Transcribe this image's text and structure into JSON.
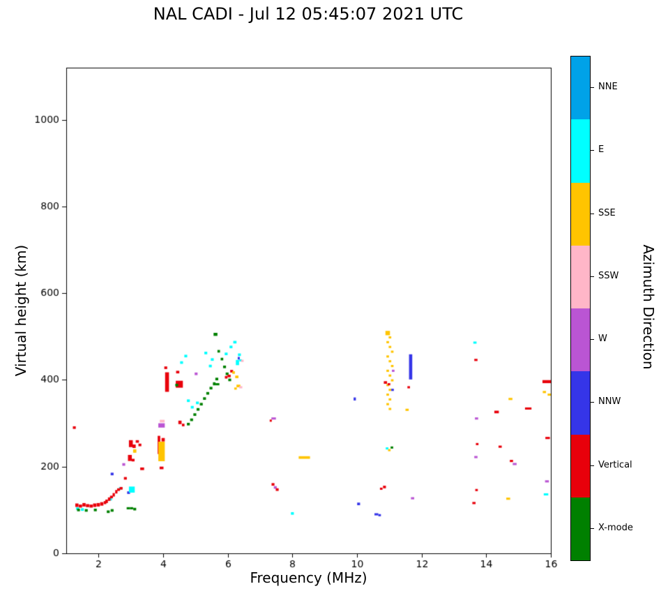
{
  "chart_data": {
    "type": "scatter",
    "title": "NAL CADI - Jul 12 05:45:07 2021 UTC",
    "xlabel": "Frequency (MHz)",
    "ylabel": "Virtual height (km)",
    "xlim": [
      1,
      16
    ],
    "ylim": [
      0,
      1120
    ],
    "xticks": [
      2,
      4,
      6,
      8,
      10,
      12,
      14,
      16
    ],
    "yticks": [
      0,
      200,
      400,
      600,
      800,
      1000
    ],
    "grid": false,
    "marker": "horizontal-dash",
    "colorbar": {
      "label": "Azimuth Direction",
      "position": "right",
      "categories": [
        {
          "label": "NNE",
          "color": "#00A2E8"
        },
        {
          "label": "E",
          "color": "#00FFFF"
        },
        {
          "label": "SSE",
          "color": "#FFC400"
        },
        {
          "label": "SSW",
          "color": "#FFB6C8"
        },
        {
          "label": "W",
          "color": "#BA55D3"
        },
        {
          "label": "NNW",
          "color": "#3535E8"
        },
        {
          "label": "Vertical",
          "color": "#E8000B"
        },
        {
          "label": "X-mode",
          "color": "#008000"
        }
      ]
    },
    "points_format": "[freq_MHz, virtual_height_km, category_index, width_MHz_optional, height_km_optional]",
    "points": [
      [
        1.25,
        290,
        6
      ],
      [
        1.33,
        111,
        6,
        0.1,
        8
      ],
      [
        1.44,
        109,
        6,
        0.1,
        7
      ],
      [
        1.55,
        112,
        6,
        0.1,
        8
      ],
      [
        1.66,
        110,
        6,
        0.1,
        7
      ],
      [
        1.77,
        109,
        6,
        0.1,
        7
      ],
      [
        1.88,
        111,
        6,
        0.1,
        8
      ],
      [
        1.99,
        112,
        6,
        0.1,
        8
      ],
      [
        2.1,
        114,
        6,
        0.1,
        8
      ],
      [
        2.2,
        117,
        6,
        0.08,
        7
      ],
      [
        1.35,
        103,
        1
      ],
      [
        1.5,
        101,
        1
      ],
      [
        2.37,
        125,
        1
      ],
      [
        2.68,
        150,
        1
      ],
      [
        1.38,
        100,
        7
      ],
      [
        1.62,
        99,
        7
      ],
      [
        1.9,
        100,
        7
      ],
      [
        2.3,
        96,
        7
      ],
      [
        2.42,
        99,
        7
      ],
      [
        2.25,
        120,
        6,
        0.08,
        8
      ],
      [
        2.33,
        125,
        6,
        0.08,
        8
      ],
      [
        2.4,
        130,
        6
      ],
      [
        2.47,
        135,
        6,
        0.07,
        8
      ],
      [
        2.55,
        142,
        6,
        0.07,
        8
      ],
      [
        2.62,
        147,
        6
      ],
      [
        2.7,
        150,
        6
      ],
      [
        2.83,
        173,
        6
      ],
      [
        2.42,
        183,
        5
      ],
      [
        2.93,
        140,
        5
      ],
      [
        2.92,
        104,
        7,
        0.1,
        5
      ],
      [
        3.02,
        104,
        7,
        0.1,
        5
      ],
      [
        3.12,
        102,
        7
      ],
      [
        3.03,
        147,
        1,
        0.18,
        14
      ],
      [
        2.78,
        205,
        4
      ],
      [
        2.97,
        220,
        6,
        0.12,
        14
      ],
      [
        3.07,
        215,
        6
      ],
      [
        3.0,
        253,
        6,
        0.12,
        16
      ],
      [
        3.1,
        247,
        6,
        0.1,
        8
      ],
      [
        3.12,
        236,
        2,
        0.1,
        8
      ],
      [
        3.2,
        258,
        6,
        0.1,
        6
      ],
      [
        3.28,
        250,
        6
      ],
      [
        3.35,
        195,
        6,
        0.12,
        6
      ],
      [
        3.87,
        250,
        6,
        0.08,
        42
      ],
      [
        3.95,
        235,
        2,
        0.2,
        45
      ],
      [
        3.95,
        197,
        6,
        0.12,
        6
      ],
      [
        4.0,
        262,
        6,
        0.1,
        8
      ],
      [
        3.95,
        295,
        4,
        0.2,
        10
      ],
      [
        3.97,
        305,
        3,
        0.15,
        6
      ],
      [
        4.12,
        395,
        6,
        0.12,
        45
      ],
      [
        4.08,
        428,
        6
      ],
      [
        4.45,
        418,
        6,
        0.1,
        6
      ],
      [
        4.5,
        390,
        6,
        0.22,
        16
      ],
      [
        4.52,
        302,
        6,
        0.1,
        8
      ],
      [
        4.62,
        296,
        6,
        0.08,
        6
      ],
      [
        4.42,
        388,
        7
      ],
      [
        4.78,
        298,
        7
      ],
      [
        4.88,
        308,
        7
      ],
      [
        4.98,
        320,
        7
      ],
      [
        5.08,
        332,
        7
      ],
      [
        5.18,
        344,
        7
      ],
      [
        5.28,
        357,
        7
      ],
      [
        5.38,
        369,
        7
      ],
      [
        5.48,
        381,
        7
      ],
      [
        5.58,
        391,
        7,
        0.08,
        7
      ],
      [
        5.66,
        402,
        7
      ],
      [
        5.62,
        505,
        7,
        0.12,
        7
      ],
      [
        5.72,
        466,
        7,
        0.08,
        6
      ],
      [
        5.82,
        448,
        7,
        0.08,
        6
      ],
      [
        5.9,
        430,
        7
      ],
      [
        5.98,
        414,
        7
      ],
      [
        6.06,
        400,
        7
      ],
      [
        5.68,
        390,
        7,
        0.12,
        5
      ],
      [
        4.57,
        440,
        1
      ],
      [
        4.7,
        455,
        1
      ],
      [
        4.78,
        352,
        1
      ],
      [
        4.9,
        337,
        1
      ],
      [
        5.06,
        347,
        1
      ],
      [
        5.32,
        462,
        1
      ],
      [
        5.46,
        432,
        1
      ],
      [
        5.52,
        447,
        1
      ],
      [
        5.95,
        460,
        1
      ],
      [
        6.1,
        476,
        1
      ],
      [
        6.22,
        487,
        1,
        0.1,
        6
      ],
      [
        6.3,
        440,
        1,
        0.1,
        12
      ],
      [
        6.36,
        458,
        1
      ],
      [
        6.4,
        445,
        1,
        0.08,
        5
      ],
      [
        6.34,
        450,
        5,
        0.05,
        6
      ],
      [
        5.95,
        406,
        6,
        0.08,
        6
      ],
      [
        6.04,
        409,
        6,
        0.1,
        6
      ],
      [
        6.12,
        420,
        6
      ],
      [
        6.18,
        417,
        2,
        0.08,
        6
      ],
      [
        6.28,
        407,
        2,
        0.1,
        6
      ],
      [
        6.33,
        386,
        2,
        0.12,
        6
      ],
      [
        6.24,
        380,
        2,
        0.08,
        5
      ],
      [
        6.4,
        383,
        3,
        0.1,
        5
      ],
      [
        6.45,
        444,
        3,
        0.08,
        5
      ],
      [
        5.02,
        414,
        4
      ],
      [
        7.42,
        311,
        4,
        0.14,
        5
      ],
      [
        7.33,
        306,
        6,
        0.06,
        5
      ],
      [
        7.4,
        159,
        6
      ],
      [
        7.47,
        152,
        4
      ],
      [
        7.53,
        147,
        6
      ],
      [
        8.0,
        92,
        1
      ],
      [
        8.37,
        221,
        2,
        0.35,
        6
      ],
      [
        9.93,
        356,
        5,
        0.07,
        7
      ],
      [
        10.05,
        114,
        5
      ],
      [
        10.6,
        90,
        5,
        0.12,
        5
      ],
      [
        10.7,
        88,
        5,
        0.08,
        5
      ],
      [
        10.75,
        149,
        6,
        0.08,
        5
      ],
      [
        10.85,
        153,
        6
      ],
      [
        10.95,
        508,
        2,
        0.14,
        10
      ],
      [
        11.02,
        498,
        2,
        0.08,
        5
      ],
      [
        10.95,
        487,
        2,
        0.08,
        5
      ],
      [
        11.02,
        476,
        2,
        0.08,
        5
      ],
      [
        11.09,
        465,
        2,
        0.08,
        5
      ],
      [
        10.95,
        454,
        2,
        0.08,
        5
      ],
      [
        11.02,
        443,
        2,
        0.08,
        5
      ],
      [
        11.09,
        432,
        2,
        0.08,
        5
      ],
      [
        10.95,
        421,
        2,
        0.08,
        5
      ],
      [
        11.02,
        410,
        2,
        0.08,
        5
      ],
      [
        11.09,
        399,
        2,
        0.08,
        5
      ],
      [
        10.95,
        388,
        2,
        0.08,
        5
      ],
      [
        11.02,
        377,
        2,
        0.08,
        5
      ],
      [
        10.95,
        366,
        2,
        0.08,
        5
      ],
      [
        11.02,
        355,
        2,
        0.08,
        5
      ],
      [
        10.95,
        344,
        2,
        0.08,
        5
      ],
      [
        11.02,
        333,
        2,
        0.08,
        5
      ],
      [
        11.0,
        238,
        2,
        0.08,
        5
      ],
      [
        10.93,
        242,
        1,
        0.08,
        5
      ],
      [
        11.08,
        244,
        7,
        0.08,
        5
      ],
      [
        10.88,
        394,
        6,
        0.1,
        6
      ],
      [
        10.99,
        390,
        6,
        0.08,
        5
      ],
      [
        11.12,
        421,
        4,
        0.08,
        5
      ],
      [
        11.1,
        377,
        5,
        0.08,
        5
      ],
      [
        11.66,
        430,
        5,
        0.1,
        58
      ],
      [
        11.6,
        383,
        6,
        0.08,
        5
      ],
      [
        11.55,
        331,
        2,
        0.1,
        5
      ],
      [
        11.72,
        127,
        4,
        0.1,
        5
      ],
      [
        13.65,
        486,
        1,
        0.1,
        5
      ],
      [
        13.68,
        446,
        6,
        0.1,
        5
      ],
      [
        13.7,
        311,
        4,
        0.1,
        5
      ],
      [
        13.72,
        252,
        6,
        0.08,
        5
      ],
      [
        13.68,
        222,
        4,
        0.1,
        5
      ],
      [
        13.7,
        146,
        6,
        0.08,
        5
      ],
      [
        13.62,
        116,
        6,
        0.1,
        5
      ],
      [
        14.32,
        326,
        6,
        0.14,
        6
      ],
      [
        14.43,
        246,
        6,
        0.1,
        5
      ],
      [
        14.78,
        213,
        6,
        0.1,
        5
      ],
      [
        14.88,
        206,
        4,
        0.12,
        5
      ],
      [
        14.75,
        356,
        2,
        0.12,
        5
      ],
      [
        14.68,
        126,
        2,
        0.12,
        5
      ],
      [
        15.3,
        334,
        6,
        0.2,
        5
      ],
      [
        15.88,
        396,
        6,
        0.28,
        7
      ],
      [
        15.8,
        372,
        2,
        0.1,
        5
      ],
      [
        15.95,
        366,
        2,
        0.1,
        5
      ],
      [
        15.9,
        266,
        6,
        0.14,
        5
      ],
      [
        15.88,
        166,
        4,
        0.12,
        5
      ],
      [
        15.85,
        136,
        1,
        0.14,
        5
      ]
    ]
  }
}
